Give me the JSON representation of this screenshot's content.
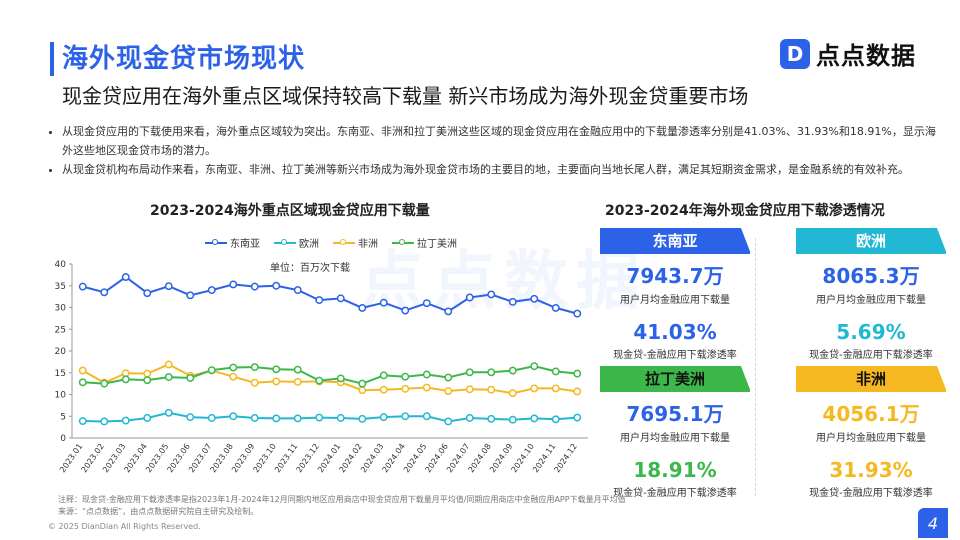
{
  "header": {
    "title": "海外现金贷市场现状",
    "subtitle": "现金贷应用在海外重点区域保持较高下载量 新兴市场成为海外现金贷重要市场",
    "logo_mark": "D",
    "logo_text": "点点数据"
  },
  "bullets": [
    "从现金贷应用的下载使用来看，海外重点区域较为突出。东南亚、非洲和拉丁美洲这些区域的现金贷应用在金融应用中的下载量渗透率分别是41.03%、31.93%和18.91%，显示海外这些地区现金贷市场的潜力。",
    "从现金贷机构布局动作来看，东南亚、非洲、拉丁美洲等新兴市场成为海外现金贷市场的主要目的地，主要面向当地长尾人群，满足其短期资金需求，是金融系统的有效补充。"
  ],
  "watermark": "点点数据",
  "chart_data": {
    "type": "line",
    "title": "2023-2024海外重点区域现金贷应用下载量",
    "unit": "单位：百万次下载",
    "xlabel": "",
    "ylabel": "",
    "ylim": [
      0,
      40
    ],
    "yticks": [
      "0",
      "5",
      "10",
      "15",
      "20",
      "25",
      "30",
      "35",
      "40"
    ],
    "grid": false,
    "legend_position": "top",
    "categories": [
      "2023.01",
      "2023.02",
      "2023.03",
      "2023.04",
      "2023.05",
      "2023.06",
      "2023.07",
      "2023.08",
      "2023.09",
      "2023.10",
      "2023.11",
      "2023.12",
      "2024.01",
      "2024.02",
      "2024.03",
      "2024.04",
      "2024.05",
      "2024.06",
      "2024.07",
      "2024.08",
      "2024.09",
      "2024.10",
      "2024.11",
      "2024.12"
    ],
    "series": [
      {
        "name": "东南亚",
        "color": "#2c62e8",
        "values": [
          34.8,
          33.5,
          37.0,
          33.3,
          34.9,
          32.8,
          34.0,
          35.3,
          34.8,
          35.0,
          34.0,
          31.7,
          32.1,
          29.9,
          31.1,
          29.3,
          31.0,
          29.1,
          32.3,
          33.0,
          31.3,
          32.0,
          29.9,
          28.6
        ]
      },
      {
        "name": "欧洲",
        "color": "#21b8d4",
        "values": [
          3.9,
          3.8,
          4.0,
          4.6,
          5.8,
          4.8,
          4.6,
          5.0,
          4.6,
          4.5,
          4.5,
          4.7,
          4.6,
          4.4,
          4.8,
          5.0,
          5.0,
          3.8,
          4.6,
          4.4,
          4.2,
          4.5,
          4.3,
          4.7
        ]
      },
      {
        "name": "非洲",
        "color": "#f5b820",
        "values": [
          15.5,
          12.7,
          14.9,
          14.8,
          16.9,
          14.3,
          15.5,
          14.1,
          12.7,
          13.0,
          12.9,
          13.0,
          12.8,
          11.0,
          11.1,
          11.3,
          11.6,
          10.8,
          11.2,
          11.1,
          10.3,
          11.4,
          11.4,
          10.7
        ]
      },
      {
        "name": "拉丁美洲",
        "color": "#3cb84a",
        "values": [
          12.8,
          12.5,
          13.5,
          13.3,
          14.0,
          13.8,
          15.6,
          16.2,
          16.3,
          15.8,
          15.7,
          13.2,
          13.7,
          12.5,
          14.4,
          14.1,
          14.6,
          13.9,
          15.1,
          15.1,
          15.5,
          16.5,
          15.3,
          14.8
        ]
      }
    ]
  },
  "penetration": {
    "title": "2023-2024年海外现金贷应用下载渗透情况",
    "value_caption": "用户月均金融应用下载量",
    "rate_caption": "现金贷-金融应用下载渗透率",
    "regions": [
      {
        "name": "东南亚",
        "value": "7943.7万",
        "rate": "41.03%",
        "color": "#2c62e8",
        "rate_color": "#2c62e8",
        "value_color": "#2c62e8"
      },
      {
        "name": "欧洲",
        "value": "8065.3万",
        "rate": "5.69%",
        "color": "#21b8d4",
        "rate_color": "#21b8d4",
        "value_color": "#2c62e8"
      },
      {
        "name": "拉丁美洲",
        "value": "7695.1万",
        "rate": "18.91%",
        "color": "#3cb84a",
        "rate_color": "#3cb84a",
        "value_color": "#2c62e8"
      },
      {
        "name": "非洲",
        "value": "4056.1万",
        "rate": "31.93%",
        "color": "#f5b820",
        "rate_color": "#f5b820",
        "value_color": "#f5b820"
      }
    ]
  },
  "footnote": {
    "note": "注释：现金贷-金融应用下载渗透率是指2023年1月-2024年12月同期内地区应用商店中现金贷应用下载量月平均值/同期应用商店中金融应用APP下载量月平均值",
    "source": "来源：“点点数据”，由点点数据研究院自主研究及绘制。"
  },
  "copyright": "© 2025 DianDian All Rights Reserved.",
  "page_number": "4"
}
